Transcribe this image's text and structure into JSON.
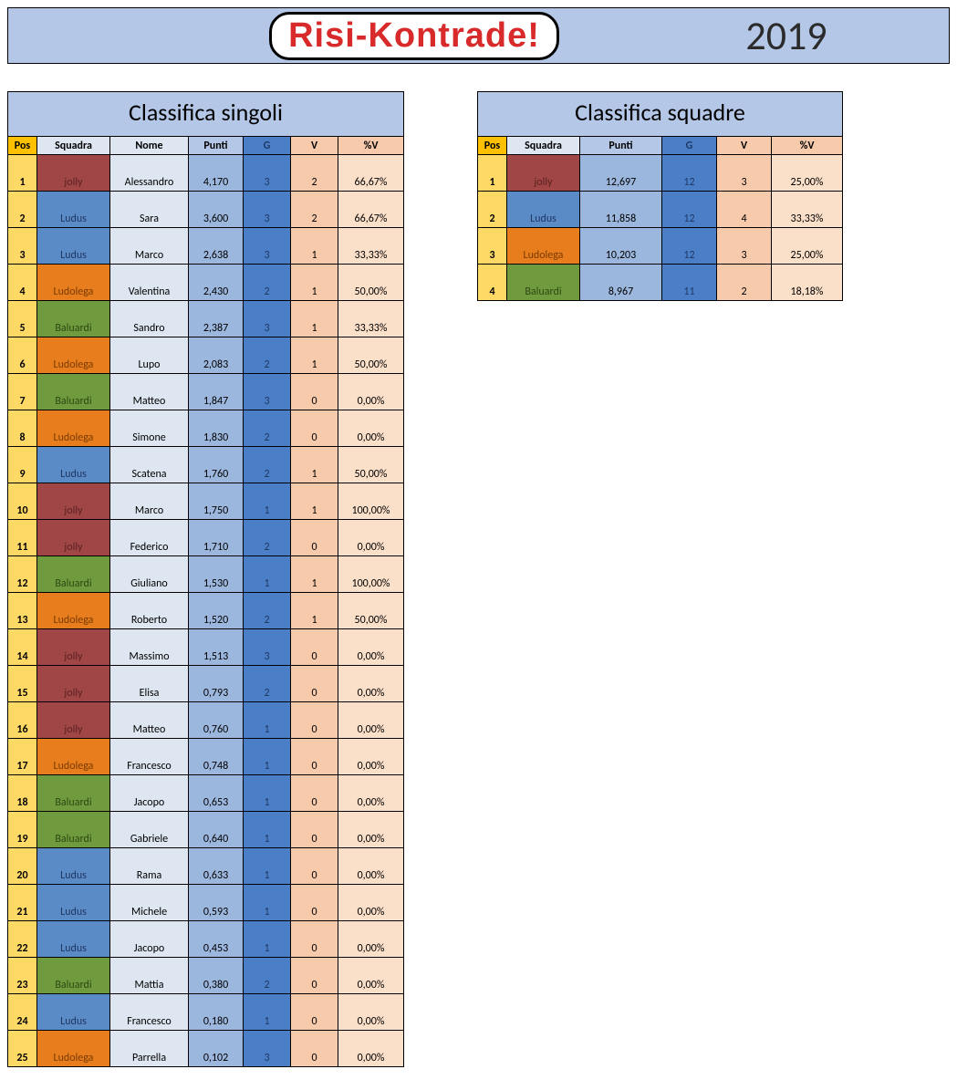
{
  "banner": {
    "logo": "Risi-Kontrade!",
    "year": "2019"
  },
  "colors": {
    "header_band": "#b4c7e7",
    "pos_header_bg": "#ffc000",
    "pos_cell_bg": "#ffd966",
    "nome_header_bg": "#dde6f1",
    "nome_cell_bg": "#dde6f1",
    "punti_header_bg": "#b4c7e7",
    "punti_cell_bg": "#9cb7dd",
    "g_header_bg": "#4a7fc7",
    "g_cell_bg": "#4a7fc7",
    "g_text": "#203864",
    "v_header_bg": "#f7caac",
    "v_cell_bg": "#f7caac",
    "pv_header_bg": "#f7caac",
    "pv_cell_bg": "#fadfc9",
    "team_jolly": "#a14646",
    "team_ludus": "#5b8bc7",
    "team_ludolega": "#e87d1e",
    "team_baluardi": "#6f9a3e",
    "team_text_dark": "#5a2020",
    "team_text_lud": "#203864",
    "team_text_ldl": "#7a3b00",
    "team_text_bal": "#2f4a14"
  },
  "singles": {
    "title": "Classifica singoli",
    "headers": [
      "Pos",
      "Squadra",
      "Nome",
      "Punti",
      "G",
      "V",
      "%V"
    ],
    "rows": [
      {
        "pos": "1",
        "team": "jolly",
        "nome": "Alessandro",
        "punti": "4,170",
        "g": "3",
        "v": "2",
        "pv": "66,67%"
      },
      {
        "pos": "2",
        "team": "Ludus",
        "nome": "Sara",
        "punti": "3,600",
        "g": "3",
        "v": "2",
        "pv": "66,67%"
      },
      {
        "pos": "3",
        "team": "Ludus",
        "nome": "Marco",
        "punti": "2,638",
        "g": "3",
        "v": "1",
        "pv": "33,33%"
      },
      {
        "pos": "4",
        "team": "Ludolega",
        "nome": "Valentina",
        "punti": "2,430",
        "g": "2",
        "v": "1",
        "pv": "50,00%"
      },
      {
        "pos": "5",
        "team": "Baluardi",
        "nome": "Sandro",
        "punti": "2,387",
        "g": "3",
        "v": "1",
        "pv": "33,33%"
      },
      {
        "pos": "6",
        "team": "Ludolega",
        "nome": "Lupo",
        "punti": "2,083",
        "g": "2",
        "v": "1",
        "pv": "50,00%"
      },
      {
        "pos": "7",
        "team": "Baluardi",
        "nome": "Matteo",
        "punti": "1,847",
        "g": "3",
        "v": "0",
        "pv": "0,00%"
      },
      {
        "pos": "8",
        "team": "Ludolega",
        "nome": "Simone",
        "punti": "1,830",
        "g": "2",
        "v": "0",
        "pv": "0,00%"
      },
      {
        "pos": "9",
        "team": "Ludus",
        "nome": "Scatena",
        "punti": "1,760",
        "g": "2",
        "v": "1",
        "pv": "50,00%"
      },
      {
        "pos": "10",
        "team": "jolly",
        "nome": "Marco",
        "punti": "1,750",
        "g": "1",
        "v": "1",
        "pv": "100,00%"
      },
      {
        "pos": "11",
        "team": "jolly",
        "nome": "Federico",
        "punti": "1,710",
        "g": "2",
        "v": "0",
        "pv": "0,00%"
      },
      {
        "pos": "12",
        "team": "Baluardi",
        "nome": "Giuliano",
        "punti": "1,530",
        "g": "1",
        "v": "1",
        "pv": "100,00%"
      },
      {
        "pos": "13",
        "team": "Ludolega",
        "nome": "Roberto",
        "punti": "1,520",
        "g": "2",
        "v": "1",
        "pv": "50,00%"
      },
      {
        "pos": "14",
        "team": "jolly",
        "nome": "Massimo",
        "punti": "1,513",
        "g": "3",
        "v": "0",
        "pv": "0,00%"
      },
      {
        "pos": "15",
        "team": "jolly",
        "nome": "Elisa",
        "punti": "0,793",
        "g": "2",
        "v": "0",
        "pv": "0,00%"
      },
      {
        "pos": "16",
        "team": "jolly",
        "nome": "Matteo",
        "punti": "0,760",
        "g": "1",
        "v": "0",
        "pv": "0,00%"
      },
      {
        "pos": "17",
        "team": "Ludolega",
        "nome": "Francesco",
        "punti": "0,748",
        "g": "1",
        "v": "0",
        "pv": "0,00%"
      },
      {
        "pos": "18",
        "team": "Baluardi",
        "nome": "Jacopo",
        "punti": "0,653",
        "g": "1",
        "v": "0",
        "pv": "0,00%"
      },
      {
        "pos": "19",
        "team": "Baluardi",
        "nome": "Gabriele",
        "punti": "0,640",
        "g": "1",
        "v": "0",
        "pv": "0,00%"
      },
      {
        "pos": "20",
        "team": "Ludus",
        "nome": "Rama",
        "punti": "0,633",
        "g": "1",
        "v": "0",
        "pv": "0,00%"
      },
      {
        "pos": "21",
        "team": "Ludus",
        "nome": "Michele",
        "punti": "0,593",
        "g": "1",
        "v": "0",
        "pv": "0,00%"
      },
      {
        "pos": "22",
        "team": "Ludus",
        "nome": "Jacopo",
        "punti": "0,453",
        "g": "1",
        "v": "0",
        "pv": "0,00%"
      },
      {
        "pos": "23",
        "team": "Baluardi",
        "nome": "Mattia",
        "punti": "0,380",
        "g": "2",
        "v": "0",
        "pv": "0,00%"
      },
      {
        "pos": "24",
        "team": "Ludus",
        "nome": "Francesco",
        "punti": "0,180",
        "g": "1",
        "v": "0",
        "pv": "0,00%"
      },
      {
        "pos": "25",
        "team": "Ludolega",
        "nome": "Parrella",
        "punti": "0,102",
        "g": "3",
        "v": "0",
        "pv": "0,00%"
      }
    ]
  },
  "teams": {
    "title": "Classifica squadre",
    "headers": [
      "Pos",
      "Squadra",
      "Punti",
      "G",
      "V",
      "%V"
    ],
    "rows": [
      {
        "pos": "1",
        "team": "jolly",
        "punti": "12,697",
        "g": "12",
        "v": "3",
        "pv": "25,00%"
      },
      {
        "pos": "2",
        "team": "Ludus",
        "punti": "11,858",
        "g": "12",
        "v": "4",
        "pv": "33,33%"
      },
      {
        "pos": "3",
        "team": "Ludolega",
        "punti": "10,203",
        "g": "12",
        "v": "3",
        "pv": "25,00%"
      },
      {
        "pos": "4",
        "team": "Baluardi",
        "punti": "8,967",
        "g": "11",
        "v": "2",
        "pv": "18,18%"
      }
    ]
  },
  "team_style": {
    "jolly": {
      "bg": "#a14646",
      "fg": "#5a2020"
    },
    "Ludus": {
      "bg": "#5b8bc7",
      "fg": "#203864"
    },
    "Ludolega": {
      "bg": "#e87d1e",
      "fg": "#7a3b00"
    },
    "Baluardi": {
      "bg": "#6f9a3e",
      "fg": "#2f4a14"
    }
  }
}
